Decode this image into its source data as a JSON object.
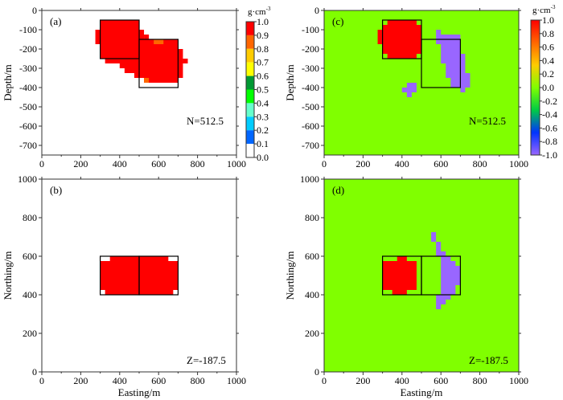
{
  "colors": {
    "red": "#ff0000",
    "orange": "#ff6600",
    "background_c_d": "#80ff00",
    "purple": "#9966ff"
  },
  "chart_data": [
    {
      "type": "heatmap",
      "panel_label": "(a)",
      "annotation": "N=512.5",
      "annotation_var": "N",
      "annotation_val": "=512.5",
      "ylabel": "Depth/m",
      "xlabel": "",
      "xlim": [
        0,
        1000
      ],
      "ylim": [
        -750,
        0
      ],
      "xticks": [
        "0",
        "200",
        "400",
        "600",
        "800",
        "1000"
      ],
      "yticks": [
        "0",
        "-100",
        "-200",
        "-300",
        "-400",
        "-500",
        "-600",
        "-700"
      ],
      "background_value": 0.0,
      "cells": [
        [
          275,
          300,
          -175,
          -100,
          1.0
        ],
        [
          300,
          500,
          -250,
          -50,
          1.0
        ],
        [
          500,
          525,
          -150,
          -100,
          1.0
        ],
        [
          525,
          550,
          -150,
          -125,
          1.0
        ],
        [
          325,
          500,
          -275,
          -250,
          1.0
        ],
        [
          400,
          500,
          -300,
          -275,
          1.0
        ],
        [
          425,
          500,
          -325,
          -300,
          1.0
        ],
        [
          475,
          500,
          -350,
          -325,
          1.0
        ],
        [
          500,
          700,
          -350,
          -150,
          1.0
        ],
        [
          525,
          700,
          -375,
          -350,
          1.0
        ],
        [
          700,
          725,
          -350,
          -200,
          1.0
        ],
        [
          725,
          750,
          -275,
          -250,
          1.0
        ],
        [
          575,
          625,
          -175,
          -150,
          0.85
        ],
        [
          525,
          550,
          -375,
          -350,
          0.85
        ]
      ],
      "outline_boxes": [
        [
          300,
          500,
          -250,
          -50
        ],
        [
          500,
          700,
          -400,
          -150
        ]
      ],
      "colorbar": {
        "unit": "g·cm-3",
        "unit_base": "g·cm",
        "unit_exp": "-3",
        "type": "discrete",
        "ticks": [
          "1.0",
          "0.9",
          "0.8",
          "0.7",
          "0.6",
          "0.5",
          "0.4",
          "0.3",
          "0.2",
          "0.1",
          "0.0"
        ],
        "colors": [
          "#ff0000",
          "#ff6600",
          "#ffcc00",
          "#ffff00",
          "#009933",
          "#00ff00",
          "#66ffcc",
          "#00ccff",
          "#0066ff",
          "#ffffff"
        ]
      }
    },
    {
      "type": "heatmap",
      "panel_label": "(b)",
      "annotation": "Z=-187.5",
      "annotation_var": "Z",
      "annotation_val": "=-187.5",
      "ylabel": "Northing/m",
      "xlabel": "Easting/m",
      "xlim": [
        0,
        1000
      ],
      "ylim": [
        0,
        1000
      ],
      "xticks": [
        "0",
        "200",
        "400",
        "600",
        "800",
        "1000"
      ],
      "yticks": [
        "0",
        "200",
        "400",
        "600",
        "800",
        "1000"
      ],
      "background_value": 0.0,
      "cells": [
        [
          300,
          700,
          400,
          600,
          1.0
        ]
      ],
      "white_cells": [
        [
          300,
          350,
          575,
          600
        ],
        [
          300,
          325,
          400,
          425
        ],
        [
          650,
          700,
          575,
          600
        ],
        [
          675,
          700,
          400,
          425
        ]
      ],
      "outline_boxes": [
        [
          300,
          500,
          400,
          600
        ],
        [
          500,
          700,
          400,
          600
        ]
      ]
    },
    {
      "type": "heatmap",
      "panel_label": "(c)",
      "annotation": "N=512.5",
      "annotation_var": "N",
      "annotation_val": "=512.5",
      "ylabel": "Depth/m",
      "xlabel": "",
      "xlim": [
        0,
        1000
      ],
      "ylim": [
        -750,
        0
      ],
      "xticks": [
        "0",
        "200",
        "400",
        "600",
        "800",
        "1000"
      ],
      "yticks": [
        "0",
        "-100",
        "-200",
        "-300",
        "-400",
        "-500",
        "-600",
        "-700"
      ],
      "background_value": 0.0,
      "cells": [
        [
          275,
          300,
          -175,
          -100,
          1.0
        ],
        [
          325,
          475,
          -250,
          -50,
          1.0
        ],
        [
          300,
          500,
          -225,
          -75,
          1.0
        ],
        [
          575,
          600,
          -125,
          -100,
          -1.0
        ],
        [
          575,
          700,
          -175,
          -125,
          -1.0
        ],
        [
          600,
          700,
          -275,
          -175,
          -1.0
        ],
        [
          625,
          700,
          -350,
          -275,
          -1.0
        ],
        [
          650,
          700,
          -400,
          -350,
          -1.0
        ],
        [
          700,
          725,
          -325,
          -225,
          -1.0
        ],
        [
          700,
          750,
          -400,
          -325,
          -1.0
        ],
        [
          700,
          725,
          -425,
          -400,
          -1.0
        ],
        [
          425,
          475,
          -400,
          -375,
          -1.0
        ],
        [
          400,
          475,
          -425,
          -400,
          -1.0
        ],
        [
          425,
          450,
          -450,
          -425,
          -1.0
        ]
      ],
      "outline_boxes": [
        [
          300,
          500,
          -250,
          -50
        ],
        [
          500,
          700,
          -400,
          -150
        ]
      ],
      "colorbar": {
        "unit": "g·cm-3",
        "unit_base": "g·cm",
        "unit_exp": "-3",
        "type": "continuous",
        "ticks": [
          "1.0",
          "0.8",
          "0.6",
          "0.4",
          "0.2",
          "0.0",
          "-0.2",
          "-0.4",
          "-0.6",
          "-0.8",
          "-1.0"
        ],
        "colors": [
          "#ff0000",
          "#ff6600",
          "#ffcc00",
          "#80ff00",
          "#00cc44",
          "#0033ff",
          "#9966ff"
        ]
      }
    },
    {
      "type": "heatmap",
      "panel_label": "(d)",
      "annotation": "Z=-187.5",
      "annotation_var": "Z",
      "annotation_val": "=-187.5",
      "ylabel": "Northing/m",
      "xlabel": "Easting/m",
      "xlim": [
        0,
        1000
      ],
      "ylim": [
        0,
        1000
      ],
      "xticks": [
        "0",
        "200",
        "400",
        "600",
        "800",
        "1000"
      ],
      "yticks": [
        "0",
        "200",
        "400",
        "600",
        "800",
        "1000"
      ],
      "background_value": 0.0,
      "cells": [
        [
          300,
          475,
          425,
          575,
          1.0
        ],
        [
          375,
          425,
          575,
          600,
          1.0
        ],
        [
          350,
          425,
          400,
          425,
          1.0
        ],
        [
          550,
          575,
          675,
          725,
          -1.0
        ],
        [
          575,
          600,
          625,
          675,
          -1.0
        ],
        [
          575,
          625,
          600,
          625,
          -1.0
        ],
        [
          600,
          650,
          575,
          600,
          -1.0
        ],
        [
          600,
          675,
          550,
          575,
          -1.0
        ],
        [
          600,
          700,
          450,
          550,
          -1.0
        ],
        [
          600,
          675,
          400,
          450,
          -1.0
        ],
        [
          575,
          650,
          375,
          400,
          -1.0
        ],
        [
          575,
          625,
          350,
          375,
          -1.0
        ],
        [
          575,
          600,
          325,
          350,
          -1.0
        ]
      ],
      "outline_boxes": [
        [
          300,
          500,
          400,
          600
        ],
        [
          500,
          700,
          400,
          600
        ]
      ]
    }
  ]
}
